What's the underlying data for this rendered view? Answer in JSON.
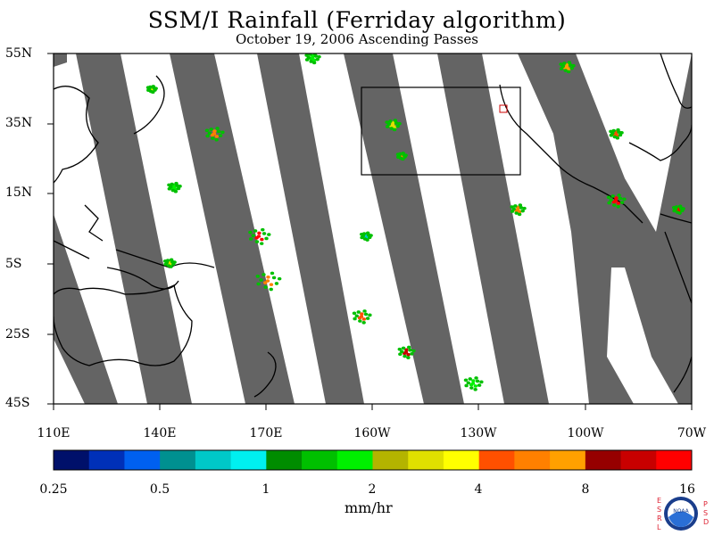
{
  "title": "SSM/I Rainfall (Ferriday algorithm)",
  "subtitle": "October 19, 2006  Ascending Passes",
  "lat_labels": [
    "55N",
    "35N",
    "15N",
    "5S",
    "25S",
    "45S"
  ],
  "lon_labels": [
    "110E",
    "140E",
    "170E",
    "160W",
    "130W",
    "100W",
    "70W"
  ],
  "colorbar": {
    "ticks": [
      "0.25",
      "0.5",
      "1",
      "2",
      "4",
      "8",
      "16"
    ],
    "units": "mm/hr",
    "colors": [
      "#00106a",
      "#0030b8",
      "#0060f0",
      "#009090",
      "#00c8c8",
      "#00f0f0",
      "#008c00",
      "#00c000",
      "#00f000",
      "#b4b400",
      "#e0e000",
      "#ffff00",
      "#ff5000",
      "#ff8000",
      "#ffa000",
      "#960000",
      "#c80000",
      "#ff0000"
    ]
  },
  "colors": {
    "swath_gap": "#646464",
    "coast": "#000000"
  },
  "logo": {
    "left_letters": "ESRL",
    "right_letters": "PSD",
    "center": "NOAA"
  }
}
